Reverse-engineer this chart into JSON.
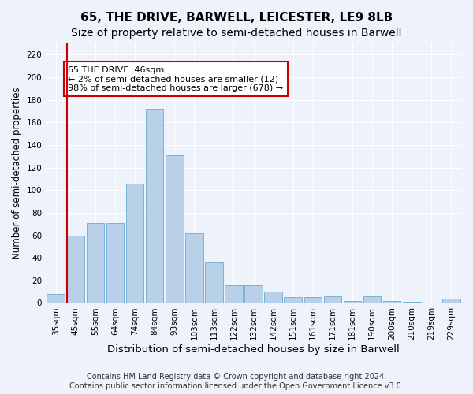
{
  "title": "65, THE DRIVE, BARWELL, LEICESTER, LE9 8LB",
  "subtitle": "Size of property relative to semi-detached houses in Barwell",
  "xlabel": "Distribution of semi-detached houses by size in Barwell",
  "ylabel": "Number of semi-detached properties",
  "categories": [
    "35sqm",
    "45sqm",
    "55sqm",
    "64sqm",
    "74sqm",
    "84sqm",
    "93sqm",
    "103sqm",
    "113sqm",
    "122sqm",
    "132sqm",
    "142sqm",
    "151sqm",
    "161sqm",
    "171sqm",
    "181sqm",
    "190sqm",
    "200sqm",
    "210sqm",
    "219sqm",
    "229sqm"
  ],
  "values": [
    8,
    60,
    71,
    71,
    106,
    172,
    131,
    62,
    36,
    16,
    16,
    10,
    5,
    5,
    6,
    2,
    6,
    2,
    1,
    0,
    4
  ],
  "bar_color": "#b8d0e8",
  "bar_edge_color": "#6aaad4",
  "highlight_line_color": "#cc0000",
  "annotation_text": "65 THE DRIVE: 46sqm\n← 2% of semi-detached houses are smaller (12)\n98% of semi-detached houses are larger (678) →",
  "annotation_box_color": "#ffffff",
  "annotation_box_edge_color": "#cc0000",
  "ylim": [
    0,
    230
  ],
  "yticks": [
    0,
    20,
    40,
    60,
    80,
    100,
    120,
    140,
    160,
    180,
    200,
    220
  ],
  "footer": "Contains HM Land Registry data © Crown copyright and database right 2024.\nContains public sector information licensed under the Open Government Licence v3.0.",
  "bg_color": "#eef2fa",
  "plot_bg_color": "#eef2fa",
  "grid_color": "#ffffff",
  "title_fontsize": 11,
  "subtitle_fontsize": 10,
  "xlabel_fontsize": 9.5,
  "ylabel_fontsize": 8.5,
  "tick_fontsize": 7.5,
  "footer_fontsize": 7,
  "annotation_fontsize": 8
}
